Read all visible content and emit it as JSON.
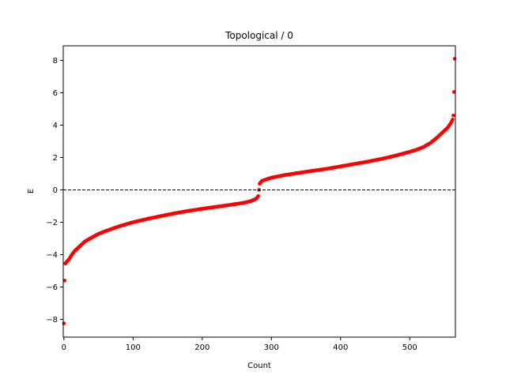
{
  "chart_data": {
    "type": "scatter",
    "title": "Topological / 0",
    "xlabel": "Count",
    "ylabel": "E",
    "xlim": [
      -1,
      566
    ],
    "ylim": [
      -9.1,
      8.9
    ],
    "xticks": [
      0,
      100,
      200,
      300,
      400,
      500
    ],
    "yticks": [
      -8,
      -6,
      -4,
      -2,
      0,
      2,
      4,
      6,
      8
    ],
    "grid": false,
    "reference_line": {
      "y": 0,
      "style": "dashed",
      "color": "#000000"
    },
    "series": [
      {
        "name": "E",
        "color": "#ff0000",
        "marker": "circle",
        "n_points": 566,
        "points": [
          [
            0,
            -8.25
          ],
          [
            1,
            -5.6
          ],
          [
            2,
            -4.55
          ],
          [
            3,
            -4.5
          ],
          [
            5,
            -4.4
          ],
          [
            8,
            -4.25
          ],
          [
            10,
            -4.1
          ],
          [
            15,
            -3.8
          ],
          [
            20,
            -3.6
          ],
          [
            25,
            -3.4
          ],
          [
            30,
            -3.2
          ],
          [
            40,
            -2.95
          ],
          [
            50,
            -2.72
          ],
          [
            60,
            -2.55
          ],
          [
            70,
            -2.4
          ],
          [
            80,
            -2.25
          ],
          [
            100,
            -2.0
          ],
          [
            120,
            -1.8
          ],
          [
            140,
            -1.62
          ],
          [
            160,
            -1.45
          ],
          [
            180,
            -1.3
          ],
          [
            200,
            -1.17
          ],
          [
            220,
            -1.05
          ],
          [
            240,
            -0.93
          ],
          [
            260,
            -0.8
          ],
          [
            270,
            -0.7
          ],
          [
            278,
            -0.55
          ],
          [
            281,
            -0.38
          ],
          [
            282,
            0.0
          ],
          [
            283,
            0.38
          ],
          [
            286,
            0.55
          ],
          [
            295,
            0.68
          ],
          [
            300,
            0.75
          ],
          [
            320,
            0.92
          ],
          [
            340,
            1.05
          ],
          [
            360,
            1.18
          ],
          [
            380,
            1.3
          ],
          [
            400,
            1.45
          ],
          [
            420,
            1.6
          ],
          [
            440,
            1.75
          ],
          [
            460,
            1.92
          ],
          [
            480,
            2.12
          ],
          [
            500,
            2.35
          ],
          [
            510,
            2.48
          ],
          [
            520,
            2.65
          ],
          [
            530,
            2.9
          ],
          [
            540,
            3.25
          ],
          [
            550,
            3.65
          ],
          [
            555,
            3.85
          ],
          [
            559,
            4.1
          ],
          [
            561,
            4.25
          ],
          [
            562,
            4.35
          ],
          [
            563,
            4.6
          ],
          [
            564,
            6.05
          ],
          [
            565,
            8.1
          ]
        ]
      }
    ]
  }
}
